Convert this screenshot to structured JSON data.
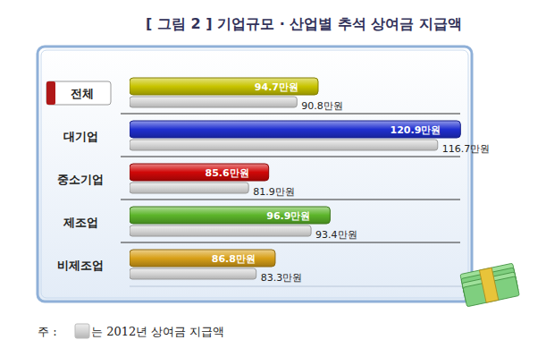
{
  "chart_data": {
    "type": "bar",
    "title": "[ 그림 2 ] 기업규모 · 산업별 추석 상여금 지급액",
    "orientation": "horizontal",
    "categories": [
      "전체",
      "대기업",
      "중소기업",
      "제조업",
      "비제조업"
    ],
    "series": [
      {
        "colors": [
          "#c8c400",
          "#2030d0",
          "#d00808",
          "#5cb52a",
          "#d8a018"
        ],
        "values": [
          94.7,
          120.9,
          85.6,
          96.9,
          86.8
        ],
        "value_labels": [
          "94.7만원",
          "120.9만원",
          "85.6만원",
          "96.9만원",
          "86.8만원"
        ]
      },
      {
        "name": "는 2012년 상여금 지급액",
        "color": "#d4d4d4",
        "values": [
          90.8,
          116.7,
          81.9,
          93.4,
          83.3
        ],
        "value_labels": [
          "90.8만원",
          "116.7만원",
          "81.9만원",
          "93.4만원",
          "83.3만원"
        ]
      }
    ],
    "xlim": [
      60,
      122
    ],
    "data_labels": true,
    "tick_labels": false,
    "grid": false,
    "annotations": [
      "주 :"
    ]
  }
}
